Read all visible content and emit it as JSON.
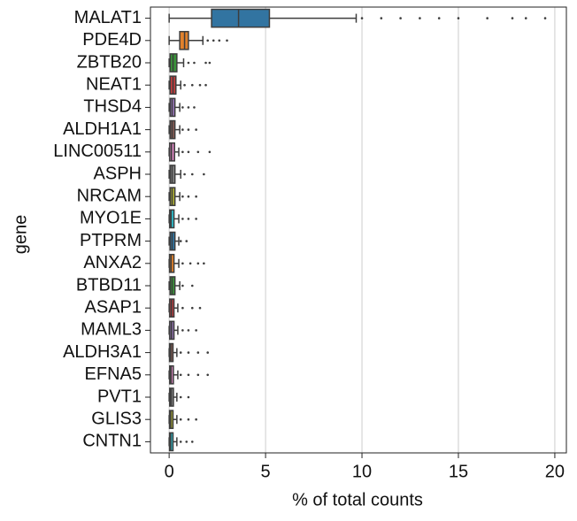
{
  "chart_data": {
    "type": "box",
    "orientation": "horizontal",
    "xlabel": "% of total counts",
    "ylabel": "gene",
    "categories": [
      "MALAT1",
      "PDE4D",
      "ZBTB20",
      "NEAT1",
      "THSD4",
      "ALDH1A1",
      "LINC00511",
      "ASPH",
      "NRCAM",
      "MYO1E",
      "PTPRM",
      "ANXA2",
      "BTBD11",
      "ASAP1",
      "MAML3",
      "ALDH3A1",
      "EFNA5",
      "PVT1",
      "GLIS3",
      "CNTN1"
    ],
    "colors": [
      "#3274a1",
      "#e1812c",
      "#3a923a",
      "#c03d3e",
      "#9372b2",
      "#845b53",
      "#d684bd",
      "#7f7f7f",
      "#a9aa35",
      "#2ebece",
      "#3274a1",
      "#e1812c",
      "#3a923a",
      "#c03d3e",
      "#9372b2",
      "#845b53",
      "#d684bd",
      "#7f7f7f",
      "#a9aa35",
      "#2ebece"
    ],
    "boxes": [
      {
        "whislo": 0,
        "q1": 2.2,
        "med": 3.6,
        "q3": 5.2,
        "whishi": 9.7,
        "fliers": [
          10,
          11,
          12,
          13,
          14,
          15,
          16.5,
          17.8,
          18.5,
          19.5
        ]
      },
      {
        "whislo": 0,
        "q1": 0.55,
        "med": 0.8,
        "q3": 1.0,
        "whishi": 1.75,
        "fliers": [
          2,
          2.3,
          2.6,
          3.0
        ]
      },
      {
        "whislo": 0,
        "q1": 0.05,
        "med": 0.2,
        "q3": 0.4,
        "whishi": 0.75,
        "fliers": [
          1,
          1.3,
          1.9,
          2.1
        ]
      },
      {
        "whislo": 0,
        "q1": 0.05,
        "med": 0.2,
        "q3": 0.35,
        "whishi": 0.6,
        "fliers": [
          0.8,
          1.2,
          1.6,
          1.9
        ]
      },
      {
        "whislo": 0,
        "q1": 0.05,
        "med": 0.15,
        "q3": 0.3,
        "whishi": 0.55,
        "fliers": [
          0.7,
          1,
          1.3
        ]
      },
      {
        "whislo": 0,
        "q1": 0.05,
        "med": 0.15,
        "q3": 0.3,
        "whishi": 0.55,
        "fliers": [
          0.7,
          1,
          1.4
        ]
      },
      {
        "whislo": 0,
        "q1": 0.03,
        "med": 0.12,
        "q3": 0.28,
        "whishi": 0.5,
        "fliers": [
          0.7,
          1,
          1.5,
          2.1
        ]
      },
      {
        "whislo": 0,
        "q1": 0.05,
        "med": 0.15,
        "q3": 0.3,
        "whishi": 0.6,
        "fliers": [
          0.8,
          1.2,
          1.8
        ]
      },
      {
        "whislo": 0,
        "q1": 0.05,
        "med": 0.15,
        "q3": 0.3,
        "whishi": 0.55,
        "fliers": [
          0.7,
          1,
          1.4
        ]
      },
      {
        "whislo": 0,
        "q1": 0.03,
        "med": 0.1,
        "q3": 0.25,
        "whishi": 0.5,
        "fliers": [
          0.7,
          1,
          1.4
        ]
      },
      {
        "whislo": 0,
        "q1": 0.05,
        "med": 0.15,
        "q3": 0.3,
        "whishi": 0.5,
        "fliers": [
          0.6,
          0.9
        ]
      },
      {
        "whislo": 0,
        "q1": 0.02,
        "med": 0.1,
        "q3": 0.25,
        "whishi": 0.5,
        "fliers": [
          0.7,
          1.1,
          1.5,
          1.8
        ]
      },
      {
        "whislo": 0,
        "q1": 0.05,
        "med": 0.15,
        "q3": 0.3,
        "whishi": 0.55,
        "fliers": [
          0.7,
          1.2
        ]
      },
      {
        "whislo": 0,
        "q1": 0.03,
        "med": 0.12,
        "q3": 0.25,
        "whishi": 0.45,
        "fliers": [
          0.7,
          1.2,
          1.6
        ]
      },
      {
        "whislo": 0,
        "q1": 0.03,
        "med": 0.12,
        "q3": 0.25,
        "whishi": 0.45,
        "fliers": [
          0.7,
          1,
          1.4
        ]
      },
      {
        "whislo": 0,
        "q1": 0.02,
        "med": 0.08,
        "q3": 0.2,
        "whishi": 0.4,
        "fliers": [
          0.6,
          1,
          1.5,
          2
        ]
      },
      {
        "whislo": 0,
        "q1": 0.03,
        "med": 0.1,
        "q3": 0.22,
        "whishi": 0.45,
        "fliers": [
          0.6,
          1,
          1.5,
          2
        ]
      },
      {
        "whislo": 0,
        "q1": 0.03,
        "med": 0.1,
        "q3": 0.22,
        "whishi": 0.4,
        "fliers": [
          0.6,
          1
        ]
      },
      {
        "whislo": 0,
        "q1": 0.02,
        "med": 0.08,
        "q3": 0.2,
        "whishi": 0.4,
        "fliers": [
          0.6,
          1,
          1.4
        ]
      },
      {
        "whislo": 0,
        "q1": 0.02,
        "med": 0.08,
        "q3": 0.2,
        "whishi": 0.4,
        "fliers": [
          0.6,
          0.9,
          1.2
        ]
      }
    ],
    "xlim": [
      -0.97,
      20.6
    ],
    "xticks": [
      0,
      5,
      10,
      15,
      20
    ],
    "grid": true
  }
}
